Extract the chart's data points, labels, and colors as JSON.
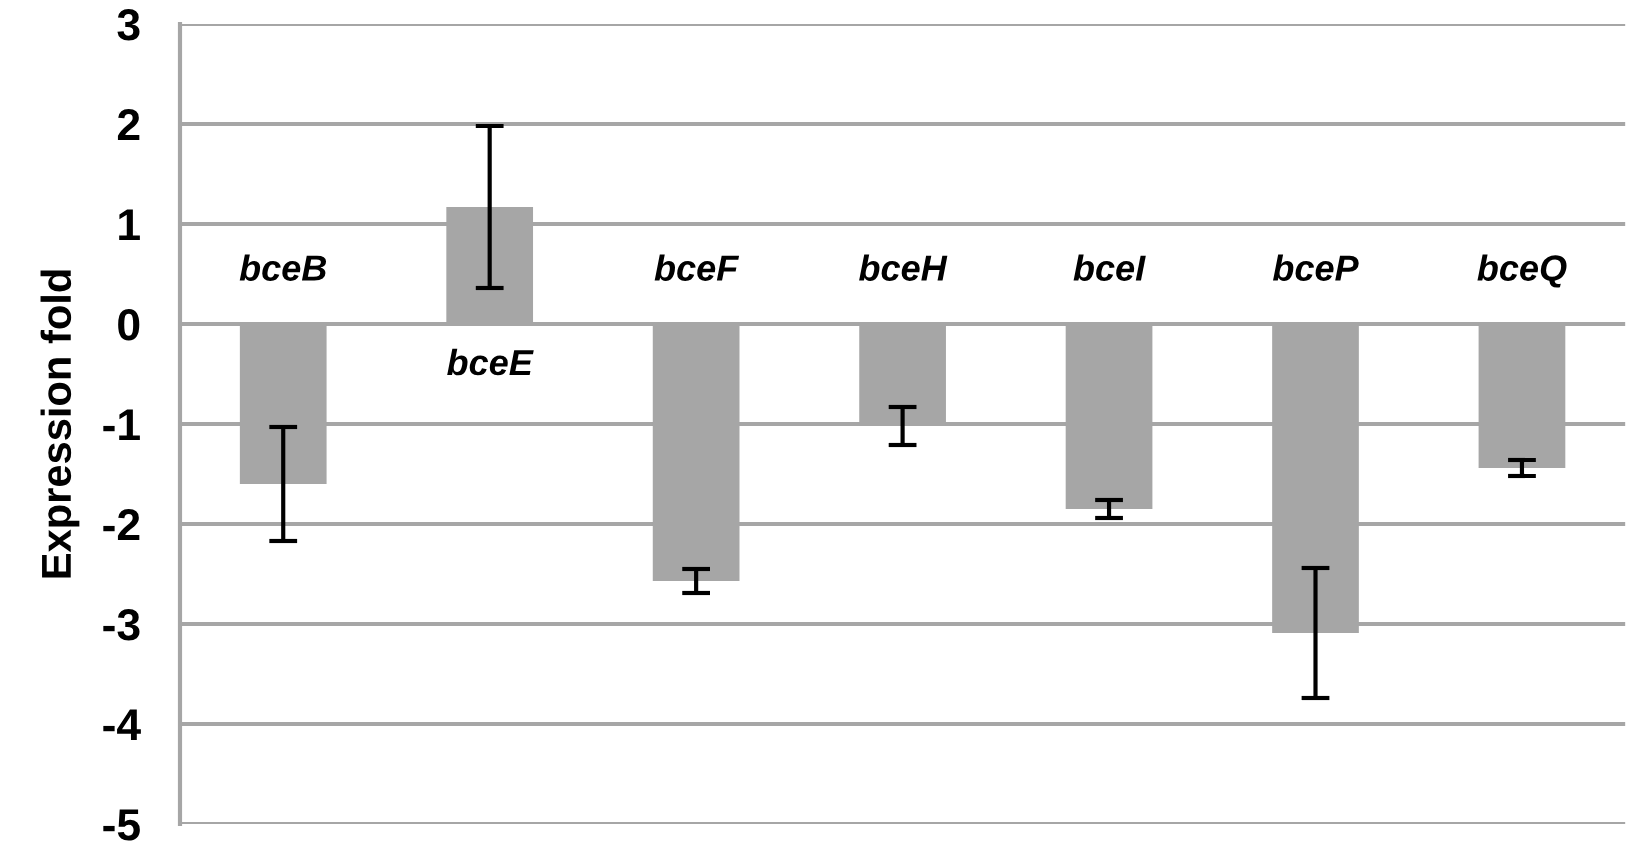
{
  "chart_data": {
    "type": "bar",
    "ylabel": "Expression fold",
    "categories": [
      "bceB",
      "bceE",
      "bceF",
      "bceH",
      "bceI",
      "bceP",
      "bceQ"
    ],
    "values": [
      -1.6,
      1.17,
      -2.57,
      -1.02,
      -1.85,
      -3.09,
      -1.44
    ],
    "errors": [
      0.57,
      0.81,
      0.12,
      0.19,
      0.09,
      0.65,
      0.08
    ],
    "color": "#a6a6a6",
    "ylim": [
      -5,
      3
    ],
    "yticks": [
      -5,
      -4,
      -3,
      -2,
      -1,
      0,
      1,
      2,
      3
    ],
    "grid": "y"
  }
}
